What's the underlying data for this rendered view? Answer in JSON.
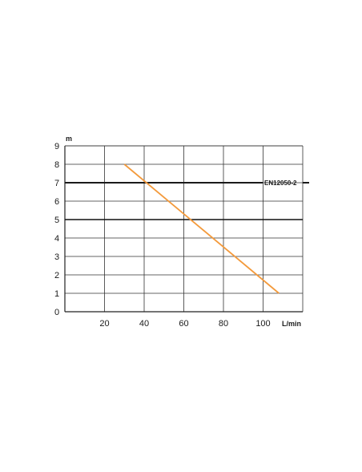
{
  "chart_data": {
    "type": "line",
    "x_unit_label": "L/min",
    "y_unit_label": "m",
    "x_ticks": [
      20,
      40,
      60,
      80,
      100
    ],
    "y_ticks": [
      0,
      1,
      2,
      3,
      4,
      5,
      6,
      7,
      8,
      9
    ],
    "xlim": [
      0,
      120
    ],
    "ylim": [
      0,
      9
    ],
    "grid": true,
    "series": [
      {
        "color": "#f39a3c",
        "x": [
          30,
          108
        ],
        "y": [
          8,
          1
        ]
      }
    ],
    "reference_lines": [
      {
        "label": "EN12050-2",
        "y": 7,
        "color": "#1a1a1a"
      }
    ],
    "emphasized_gridlines_y": [
      5
    ]
  }
}
